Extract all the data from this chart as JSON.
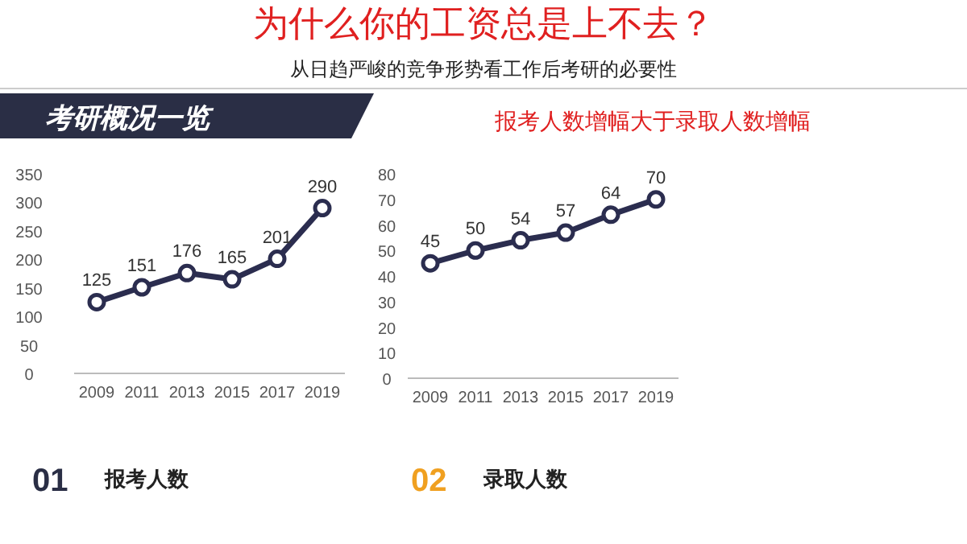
{
  "chart_data": [
    {
      "type": "other",
      "title": "为什么你的工资总是上不去？",
      "subtitle": "从日趋严峻的竞争形势看工作后考研的必要性",
      "annotations": [
        "考研概况一览"
      ]
    },
    {
      "type": "line",
      "categories": [
        "2009",
        "2011",
        "2013",
        "2015",
        "2017",
        "2019"
      ],
      "values": [
        125,
        151,
        176,
        165,
        201,
        290
      ],
      "color": "#2b2d4f",
      "ylim": [
        0,
        350
      ],
      "yticks": [
        0,
        50,
        100,
        150,
        200,
        250,
        300,
        350
      ],
      "data_labels": true,
      "marker": "circle",
      "line_style": "solid",
      "grid": false,
      "xlabel": "报考人数",
      "annotations": [
        "01"
      ]
    },
    {
      "type": "line",
      "title": "报考人数增幅大于录取人数增幅",
      "categories": [
        "2009",
        "2011",
        "2013",
        "2015",
        "2017",
        "2019"
      ],
      "values": [
        45,
        50,
        54,
        57,
        64,
        70
      ],
      "color": "#2b2d4f",
      "ylim": [
        0,
        80
      ],
      "yticks": [
        0,
        10,
        20,
        30,
        40,
        50,
        60,
        70,
        80
      ],
      "data_labels": true,
      "marker": "circle",
      "line_style": "solid",
      "grid": false,
      "xlabel": "录取人数",
      "annotations": [
        "02"
      ]
    }
  ]
}
